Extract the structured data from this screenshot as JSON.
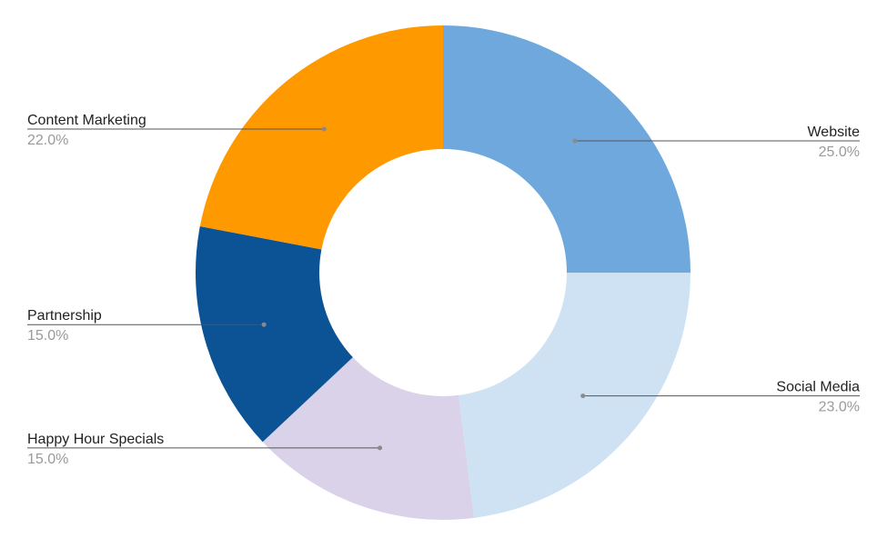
{
  "chart_data": {
    "type": "pie",
    "variant": "donut",
    "title": "",
    "slices": [
      {
        "label": "Website",
        "value": 25.0,
        "value_label": "25.0%",
        "color": "#6fa8dc",
        "label_side": "right"
      },
      {
        "label": "Social Media",
        "value": 23.0,
        "value_label": "23.0%",
        "color": "#cfe2f3",
        "label_side": "right"
      },
      {
        "label": "Happy Hour Specials",
        "value": 15.0,
        "value_label": "15.0%",
        "color": "#d9d2e9",
        "label_side": "left"
      },
      {
        "label": "Partnership",
        "value": 15.0,
        "value_label": "15.0%",
        "color": "#0b5394",
        "label_side": "left"
      },
      {
        "label": "Content Marketing",
        "value": 22.0,
        "value_label": "22.0%",
        "color": "#ff9900",
        "label_side": "left"
      }
    ],
    "start": "top (12 o'clock), clockwise",
    "legend": "none (slice labels with leader lines)"
  }
}
